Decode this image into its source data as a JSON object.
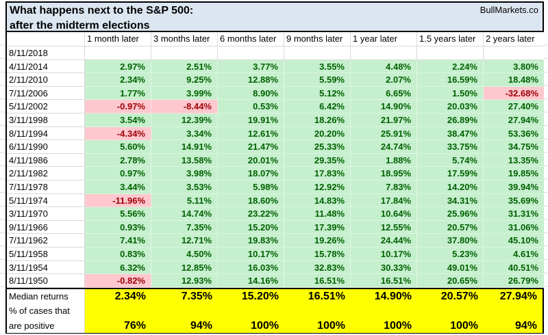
{
  "title": {
    "line1": "What happens next to the S&P 500:",
    "line2": "after the midterm elections",
    "brand": "BullMarkets.co"
  },
  "chart_data": {
    "type": "table",
    "columns": [
      "1 month later",
      "3 months later",
      "6 months later",
      "9 months later",
      "1 year later",
      "1.5 years later",
      "2 years later"
    ],
    "rows": [
      {
        "date": "8/11/2018",
        "values": [
          "",
          "",
          "",
          "",
          "",
          "",
          ""
        ]
      },
      {
        "date": "4/11/2014",
        "values": [
          "2.97%",
          "2.51%",
          "3.77%",
          "3.55%",
          "4.48%",
          "2.24%",
          "3.80%"
        ]
      },
      {
        "date": "2/11/2010",
        "values": [
          "2.34%",
          "9.25%",
          "12.88%",
          "5.59%",
          "2.07%",
          "16.59%",
          "18.48%"
        ]
      },
      {
        "date": "7/11/2006",
        "values": [
          "1.77%",
          "3.99%",
          "8.90%",
          "5.12%",
          "6.65%",
          "1.50%",
          "-32.68%"
        ]
      },
      {
        "date": "5/11/2002",
        "values": [
          "-0.97%",
          "-8.44%",
          "0.53%",
          "6.42%",
          "14.90%",
          "20.03%",
          "27.40%"
        ]
      },
      {
        "date": "3/11/1998",
        "values": [
          "3.54%",
          "12.39%",
          "19.91%",
          "18.26%",
          "21.97%",
          "26.89%",
          "27.94%"
        ]
      },
      {
        "date": "8/11/1994",
        "values": [
          "-4.34%",
          "3.34%",
          "12.61%",
          "20.20%",
          "25.91%",
          "38.47%",
          "53.36%"
        ]
      },
      {
        "date": "6/11/1990",
        "values": [
          "5.60%",
          "14.91%",
          "21.47%",
          "25.33%",
          "24.74%",
          "33.75%",
          "34.75%"
        ]
      },
      {
        "date": "4/11/1986",
        "values": [
          "2.78%",
          "13.58%",
          "20.01%",
          "29.35%",
          "1.88%",
          "5.74%",
          "13.35%"
        ]
      },
      {
        "date": "2/11/1982",
        "values": [
          "0.97%",
          "3.98%",
          "18.07%",
          "17.83%",
          "18.95%",
          "17.59%",
          "19.85%"
        ]
      },
      {
        "date": "7/11/1978",
        "values": [
          "3.44%",
          "3.53%",
          "5.98%",
          "12.92%",
          "7.83%",
          "14.20%",
          "39.94%"
        ]
      },
      {
        "date": "5/11/1974",
        "values": [
          "-11.96%",
          "5.11%",
          "18.60%",
          "14.83%",
          "17.84%",
          "34.31%",
          "35.69%"
        ]
      },
      {
        "date": "3/11/1970",
        "values": [
          "5.56%",
          "14.74%",
          "23.22%",
          "11.48%",
          "10.64%",
          "25.96%",
          "31.31%"
        ]
      },
      {
        "date": "9/11/1966",
        "values": [
          "0.93%",
          "7.35%",
          "15.20%",
          "17.39%",
          "12.55%",
          "20.57%",
          "31.06%"
        ]
      },
      {
        "date": "7/11/1962",
        "values": [
          "7.41%",
          "12.71%",
          "19.83%",
          "19.26%",
          "24.44%",
          "37.80%",
          "45.10%"
        ]
      },
      {
        "date": "5/11/1958",
        "values": [
          "0.83%",
          "4.50%",
          "10.17%",
          "15.78%",
          "10.17%",
          "5.23%",
          "4.61%"
        ]
      },
      {
        "date": "3/11/1954",
        "values": [
          "6.32%",
          "12.85%",
          "16.03%",
          "32.83%",
          "30.33%",
          "49.01%",
          "40.51%"
        ]
      },
      {
        "date": "8/11/1950",
        "values": [
          "-0.82%",
          "12.93%",
          "14.16%",
          "16.51%",
          "16.51%",
          "20.65%",
          "26.79%"
        ]
      }
    ],
    "summary": {
      "median_label": "Median returns",
      "positive_label_line1": "% of cases that",
      "positive_label_line2": "are positive",
      "median_values": [
        "2.34%",
        "7.35%",
        "15.20%",
        "16.51%",
        "14.90%",
        "20.57%",
        "27.94%"
      ],
      "positive_values": [
        "76%",
        "94%",
        "100%",
        "100%",
        "100%",
        "100%",
        "94%"
      ]
    }
  },
  "colors": {
    "positive_fill": "#c6efce",
    "positive_text": "#006100",
    "negative_fill": "#ffc7ce",
    "negative_text": "#9c0006",
    "summary_fill": "#ffff00",
    "title_fill": "#dce6f1",
    "gridline": "#d9d9d9"
  }
}
